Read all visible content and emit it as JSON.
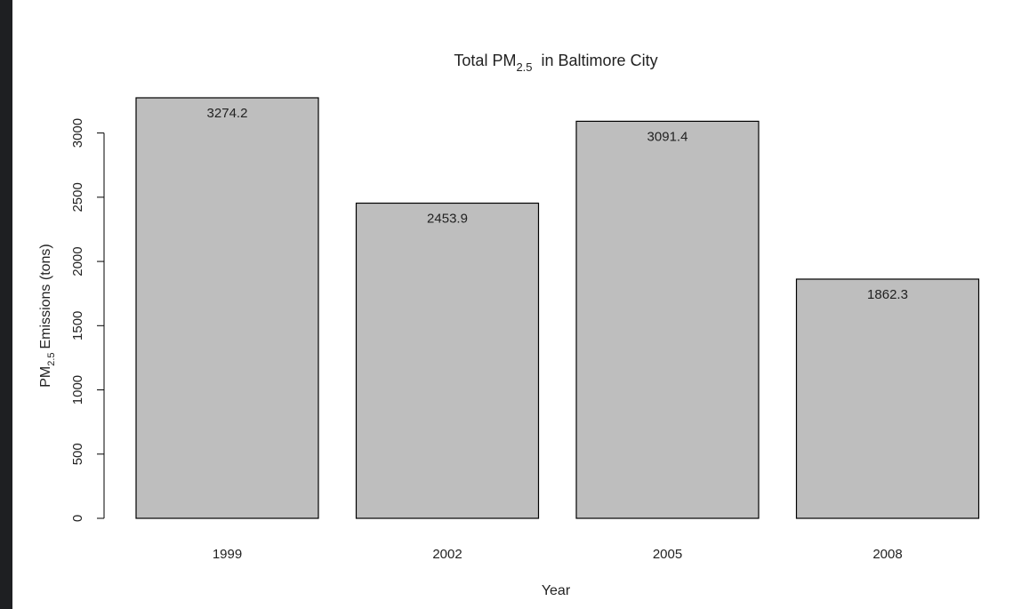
{
  "chart_data": {
    "type": "bar",
    "title": {
      "prefix": "Total PM",
      "sub": "2.5",
      "suffix": "in Baltimore City"
    },
    "xlabel": "Year",
    "ylabel": {
      "prefix": "PM",
      "sub": "2.5",
      "suffix": "Emissions (tons)"
    },
    "categories": [
      "1999",
      "2002",
      "2005",
      "2008"
    ],
    "values": [
      3274.2,
      2453.9,
      3091.4,
      1862.3
    ],
    "data_labels": [
      "3274.2",
      "2453.9",
      "3091.4",
      "1862.3"
    ],
    "yticks": [
      0,
      500,
      1000,
      1500,
      2000,
      2500,
      3000
    ],
    "ylim": [
      0,
      3274.2
    ],
    "bar_color": "#bebebe",
    "bar_border": "#000000",
    "grid": false,
    "legend": "none"
  }
}
